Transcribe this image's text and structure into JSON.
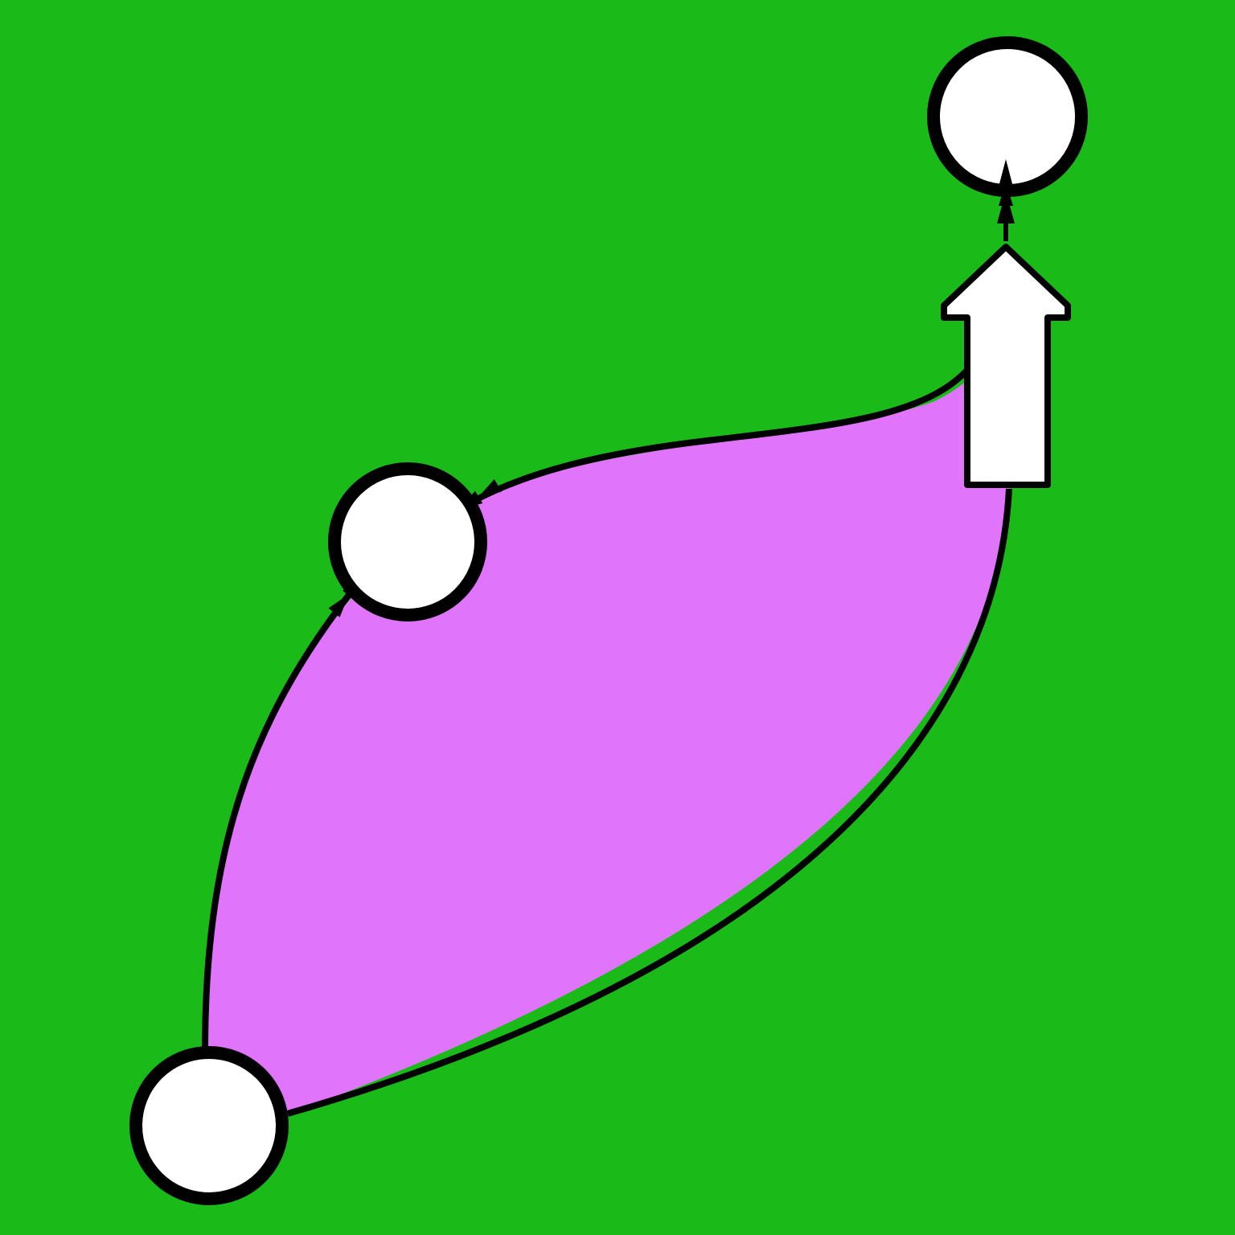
{
  "colors": {
    "background": "#1abb19",
    "region_fill": "#e075fc",
    "node_fill": "#ffffff",
    "stroke": "#000000"
  },
  "nodes": [
    {
      "id": "top-right-node"
    },
    {
      "id": "middle-node"
    },
    {
      "id": "bottom-left-node"
    }
  ],
  "edges": [
    {
      "from": "bottom-left-node",
      "to": "middle-node",
      "arrowhead": "double-triangle"
    },
    {
      "from": "block-arrow",
      "to": "middle-node",
      "arrowhead": "double-triangle"
    },
    {
      "from": "bottom-left-node",
      "to": "block-arrow",
      "arrowhead": "none"
    },
    {
      "from": "block-arrow",
      "to": "top-right-node",
      "arrowhead": "double-triangle"
    }
  ],
  "block_arrow": {
    "direction": "up",
    "icon": "up-arrow-icon"
  }
}
